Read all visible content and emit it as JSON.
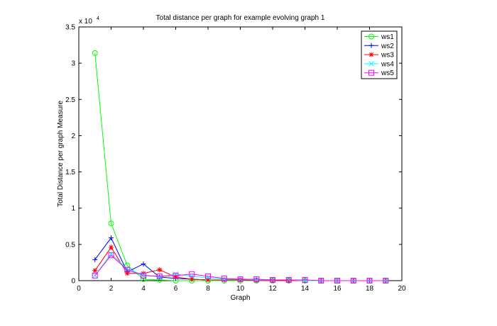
{
  "chart_data": {
    "type": "line",
    "title": "Total distance per graph for example evolving graph 1",
    "xlabel": "Graph",
    "ylabel": "Total Distance per graph Measure",
    "y_exponent_label": "x 10",
    "y_exponent_power": "4",
    "xlim": [
      0,
      20
    ],
    "ylim": [
      0,
      3.5
    ],
    "xticks": [
      "0",
      "2",
      "4",
      "6",
      "8",
      "10",
      "12",
      "14",
      "16",
      "18",
      "20"
    ],
    "yticks": [
      "0",
      "0.5",
      "1",
      "1.5",
      "2",
      "2.5",
      "3",
      "3.5"
    ],
    "grid": false,
    "legend_position": "top-right",
    "x": [
      1,
      2,
      3,
      4,
      5,
      6,
      7,
      8,
      9,
      10,
      11,
      12,
      13,
      14,
      15,
      16,
      17,
      18,
      19
    ],
    "series": [
      {
        "name": "ws1",
        "color": "#00ff00",
        "marker": "circle",
        "values": [
          3.14,
          0.79,
          0.21,
          0.02,
          0.01,
          0.0,
          0.0,
          0.0,
          0.0,
          0.0,
          0.0,
          0.0,
          0.0,
          0.0,
          0.0,
          0.0,
          0.0,
          0.0,
          0.0
        ]
      },
      {
        "name": "ws2",
        "color": "#0000ff",
        "marker": "plus",
        "values": [
          0.29,
          0.59,
          0.12,
          0.23,
          0.05,
          0.03,
          0.02,
          0.01,
          0.01,
          0.01,
          0.01,
          0.0,
          0.0,
          0.0,
          0.0,
          0.0,
          0.0,
          0.0,
          0.0
        ]
      },
      {
        "name": "ws3",
        "color": "#ff0000",
        "marker": "star",
        "values": [
          0.14,
          0.46,
          0.1,
          0.1,
          0.15,
          0.05,
          0.02,
          0.01,
          0.01,
          0.01,
          0.0,
          0.0,
          0.0,
          0.0,
          0.0,
          0.0,
          0.0,
          0.0,
          0.0
        ]
      },
      {
        "name": "ws4",
        "color": "#00ffff",
        "marker": "x",
        "values": [
          0.07,
          0.37,
          0.16,
          0.08,
          0.05,
          0.09,
          0.06,
          0.04,
          0.02,
          0.02,
          0.01,
          0.01,
          0.01,
          0.0,
          0.0,
          0.0,
          0.0,
          0.0,
          0.0
        ]
      },
      {
        "name": "ws5",
        "color": "#ff00ff",
        "marker": "square",
        "values": [
          0.07,
          0.35,
          0.15,
          0.07,
          0.06,
          0.07,
          0.09,
          0.06,
          0.03,
          0.02,
          0.02,
          0.01,
          0.01,
          0.01,
          0.0,
          0.0,
          0.0,
          0.0,
          0.0
        ]
      }
    ]
  }
}
